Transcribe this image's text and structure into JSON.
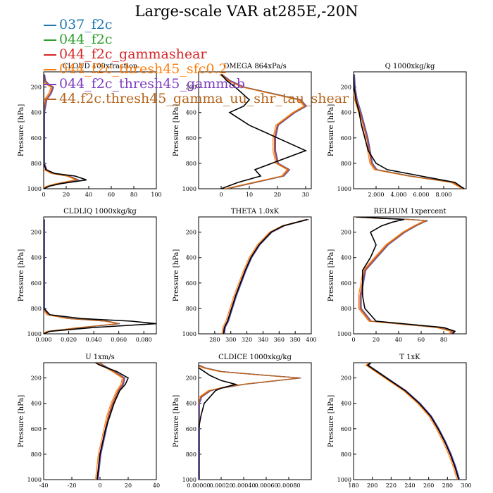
{
  "title": "Large-scale VAR at285E,-20N",
  "legend": [
    {
      "label": "037_f2c",
      "color": "#1f77b4"
    },
    {
      "label": "044_f2c",
      "color": "#2ca02c"
    },
    {
      "label": "044_f2c_gammashear",
      "color": "#d62728"
    },
    {
      "label": "044_f2c_thresh45_sfc0.2",
      "color": "#ff7f0e"
    },
    {
      "label": "044_f2c_thresh45_gammab",
      "color": "#7f3fbf"
    },
    {
      "label": "44.f2c.thresh45_gamma_uu_shr_tau_shear",
      "color": "#b5651d"
    }
  ],
  "obs_color": "#000000",
  "chart_data": [
    {
      "type": "line",
      "title": "CLOUD 100xfraction",
      "ylabel": "Pressure [hPa]",
      "xlim": [
        0,
        100
      ],
      "ylim": [
        1000,
        80
      ],
      "xticks": [
        0,
        20,
        40,
        60,
        80,
        100
      ],
      "xtick_labels": [
        "0",
        "20",
        "40",
        "60",
        "80",
        "100"
      ],
      "yticks": [
        200,
        400,
        600,
        800,
        1000
      ],
      "ytick_labels": [
        "200",
        "400",
        "600",
        "800",
        "1000"
      ],
      "p": [
        100,
        150,
        180,
        200,
        250,
        300,
        400,
        600,
        800,
        850,
        880,
        900,
        930,
        960,
        980,
        1000
      ],
      "obs": [
        0,
        0,
        0,
        0,
        0,
        0,
        0,
        0,
        0,
        2,
        10,
        28,
        38,
        15,
        5,
        0
      ],
      "model": [
        0,
        1,
        4,
        8,
        6,
        2,
        0,
        0,
        0,
        2,
        8,
        22,
        30,
        12,
        4,
        0
      ]
    },
    {
      "type": "line",
      "title": "OMEGA 864xPa/s",
      "ylabel": "Pressure [hPa]",
      "xlim": [
        -8,
        32
      ],
      "ylim": [
        1000,
        80
      ],
      "xticks": [
        0,
        10,
        20,
        30
      ],
      "xtick_labels": [
        "0",
        "10",
        "20",
        "30"
      ],
      "yticks": [
        200,
        400,
        600,
        800,
        1000
      ],
      "ytick_labels": [
        "200",
        "400",
        "600",
        "800",
        "1000"
      ],
      "p": [
        100,
        150,
        200,
        300,
        350,
        400,
        500,
        600,
        700,
        800,
        850,
        900,
        950,
        1000
      ],
      "obs": [
        0,
        2,
        5,
        10,
        8,
        3,
        10,
        20,
        30,
        18,
        12,
        14,
        6,
        0
      ],
      "model": [
        0,
        3,
        8,
        28,
        30,
        26,
        20,
        19,
        19,
        20,
        24,
        22,
        12,
        2
      ]
    },
    {
      "type": "line",
      "title": "Q 1000xkg/kg",
      "ylabel": "Pressure [hPa]",
      "xlim": [
        0,
        10000
      ],
      "ylim": [
        1000,
        80
      ],
      "xticks": [
        2000,
        4000,
        6000,
        8000
      ],
      "xtick_labels": [
        "2.000",
        "4.000",
        "6.000",
        "8.000"
      ],
      "yticks": [
        200,
        400,
        600,
        800,
        1000
      ],
      "ytick_labels": [
        "200",
        "400",
        "600",
        "800",
        "1000"
      ],
      "p": [
        100,
        200,
        300,
        400,
        500,
        600,
        700,
        800,
        850,
        900,
        950,
        1000
      ],
      "obs": [
        5,
        50,
        200,
        500,
        700,
        1000,
        1300,
        2000,
        3000,
        6000,
        9000,
        9800
      ],
      "model": [
        5,
        60,
        250,
        600,
        900,
        1200,
        1400,
        1600,
        2000,
        5000,
        8800,
        9800
      ]
    },
    {
      "type": "line",
      "title": "CLDLIQ 1000xkg/kg",
      "ylabel": "Pressure [hPa]",
      "xlim": [
        0,
        0.09
      ],
      "ylim": [
        1000,
        80
      ],
      "xticks": [
        0,
        0.02,
        0.04,
        0.06,
        0.08
      ],
      "xtick_labels": [
        "0.000",
        "0.020",
        "0.040",
        "0.060",
        "0.080"
      ],
      "yticks": [
        200,
        400,
        600,
        800,
        1000
      ],
      "ytick_labels": [
        "200",
        "400",
        "600",
        "800",
        "1000"
      ],
      "p": [
        100,
        300,
        600,
        800,
        850,
        880,
        900,
        920,
        950,
        980,
        1000
      ],
      "obs": [
        0,
        0,
        0,
        0,
        0.005,
        0.03,
        0.07,
        0.09,
        0.04,
        0.005,
        0
      ],
      "model": [
        0,
        0,
        0,
        0,
        0.004,
        0.02,
        0.05,
        0.06,
        0.03,
        0.004,
        0
      ]
    },
    {
      "type": "line",
      "title": "THETA 1.0xK",
      "ylabel": "Pressure [hPa]",
      "xlim": [
        260,
        400
      ],
      "ylim": [
        1000,
        80
      ],
      "xticks": [
        280,
        300,
        320,
        340,
        360,
        380,
        400
      ],
      "xtick_labels": [
        "280",
        "300",
        "320",
        "340",
        "360",
        "380",
        "400"
      ],
      "yticks": [
        200,
        400,
        600,
        800,
        1000
      ],
      "ytick_labels": [
        "200",
        "400",
        "600",
        "800",
        "1000"
      ],
      "p": [
        100,
        150,
        200,
        300,
        400,
        500,
        600,
        700,
        800,
        900,
        950,
        1000
      ],
      "obs": [
        395,
        365,
        350,
        335,
        325,
        318,
        312,
        306,
        301,
        296,
        292,
        291
      ],
      "model": [
        396,
        366,
        350,
        335,
        325,
        318,
        312,
        306,
        301,
        296,
        292,
        291
      ]
    },
    {
      "type": "line",
      "title": "RELHUM 1xpercent",
      "ylabel": "Pressure [hPa]",
      "xlim": [
        0,
        100
      ],
      "ylim": [
        1000,
        80
      ],
      "xticks": [
        0,
        20,
        40,
        60,
        80
      ],
      "xtick_labels": [
        "0",
        "20",
        "40",
        "60",
        "80"
      ],
      "yticks": [
        200,
        400,
        600,
        800,
        1000
      ],
      "ytick_labels": [
        "200",
        "400",
        "600",
        "800",
        "1000"
      ],
      "p": [
        80,
        90,
        100,
        110,
        120,
        150,
        200,
        300,
        400,
        500,
        600,
        700,
        800,
        900,
        950,
        980,
        1000
      ],
      "obs": [
        2,
        25,
        45,
        40,
        35,
        25,
        15,
        20,
        15,
        8,
        8,
        8,
        10,
        20,
        80,
        90,
        88
      ],
      "model": [
        2,
        20,
        50,
        65,
        62,
        55,
        45,
        30,
        20,
        10,
        8,
        6,
        6,
        15,
        75,
        88,
        86
      ]
    },
    {
      "type": "line",
      "title": "U 1xm/s",
      "ylabel": "Pressure [hPa]",
      "xlim": [
        -40,
        40
      ],
      "ylim": [
        1000,
        80
      ],
      "xticks": [
        -40,
        -20,
        0,
        20,
        40
      ],
      "xtick_labels": [
        "-40",
        "-20",
        "0",
        "20",
        "40"
      ],
      "yticks": [
        200,
        400,
        600,
        800,
        1000
      ],
      "ytick_labels": [
        "200",
        "400",
        "600",
        "800",
        "1000"
      ],
      "p": [
        50,
        100,
        150,
        200,
        250,
        300,
        400,
        500,
        600,
        700,
        800,
        900,
        1000
      ],
      "obs": [
        -8,
        0,
        12,
        20,
        18,
        14,
        10,
        7,
        4,
        2,
        0,
        -1,
        -2
      ],
      "model": [
        -6,
        2,
        10,
        17,
        16,
        13,
        9,
        6,
        4,
        2,
        0,
        -1,
        -2
      ]
    },
    {
      "type": "line",
      "title": "CLDICE 1000xkg/kg",
      "ylabel": "Pressure [hPa]",
      "xlim": [
        0,
        0.001
      ],
      "ylim": [
        1000,
        80
      ],
      "xticks": [
        0,
        0.0002,
        0.0004,
        0.0006,
        0.0008
      ],
      "xtick_labels": [
        "0.00000",
        "0.00020",
        "0.00040",
        "0.00060",
        "0.00080"
      ],
      "yticks": [
        200,
        400,
        600,
        800,
        1000
      ],
      "ytick_labels": [
        "200",
        "400",
        "600",
        "800",
        "1000"
      ],
      "p": [
        100,
        120,
        150,
        180,
        200,
        220,
        250,
        280,
        300,
        350,
        400,
        500,
        600,
        700,
        1000
      ],
      "obs": [
        0,
        0,
        5e-05,
        0.0001,
        0.00015,
        0.0002,
        0.00033,
        0.0002,
        0.00015,
        0.0001,
        5e-05,
        2e-05,
        0,
        0,
        0
      ],
      "model": [
        0,
        5e-05,
        0.0002,
        0.0006,
        0.0009,
        0.0007,
        0.0004,
        0.0002,
        0.0001,
        2e-05,
        0,
        0,
        0,
        0,
        0
      ]
    },
    {
      "type": "line",
      "title": "T 1xK",
      "ylabel": "Pressure [hPa]",
      "xlim": [
        180,
        300
      ],
      "ylim": [
        1000,
        80
      ],
      "xticks": [
        180,
        200,
        220,
        240,
        260,
        280,
        300
      ],
      "xtick_labels": [
        "180",
        "200",
        "220",
        "240",
        "260",
        "280",
        "300"
      ],
      "yticks": [
        200,
        400,
        600,
        800,
        1000
      ],
      "ytick_labels": [
        "200",
        "400",
        "600",
        "800",
        "1000"
      ],
      "p": [
        20,
        50,
        80,
        100,
        150,
        200,
        300,
        400,
        500,
        600,
        700,
        800,
        900,
        1000
      ],
      "obs": [
        240,
        220,
        198,
        195,
        205,
        215,
        235,
        250,
        262,
        270,
        277,
        283,
        288,
        292
      ],
      "model": [
        240,
        220,
        198,
        195,
        205,
        215,
        235,
        250,
        262,
        270,
        277,
        283,
        288,
        292
      ]
    }
  ]
}
